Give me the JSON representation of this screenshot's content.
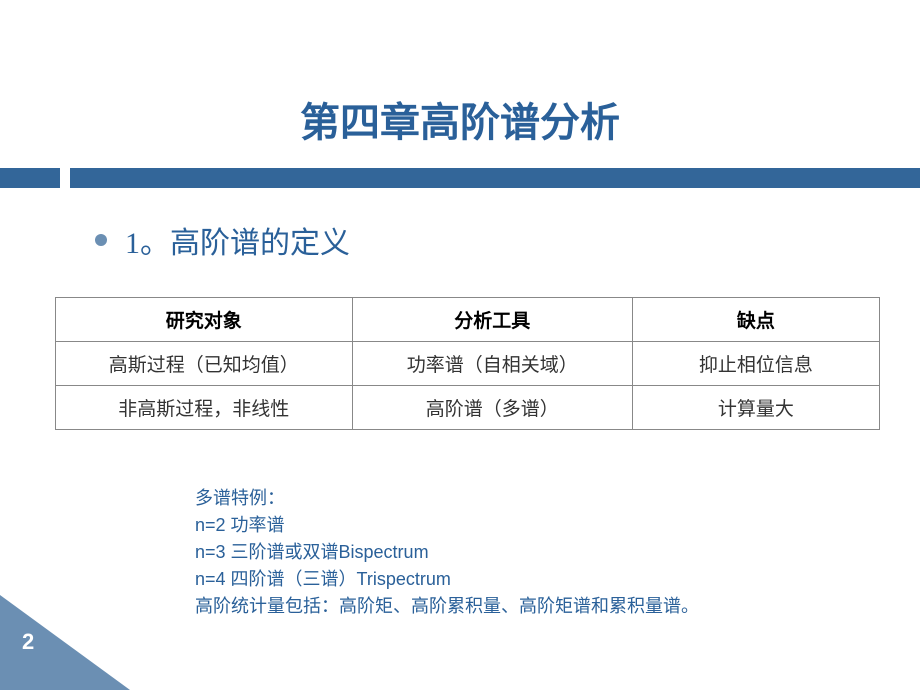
{
  "title": "第四章高阶谱分析",
  "section": {
    "heading": "1。高阶谱的定义"
  },
  "table": {
    "headers": [
      "研究对象",
      "分析工具",
      "缺点"
    ],
    "rows": [
      [
        "高斯过程（已知均值）",
        "功率谱（自相关域）",
        "抑止相位信息"
      ],
      [
        "非高斯过程，非线性",
        "高阶谱（多谱）",
        "计算量大"
      ]
    ]
  },
  "notes": {
    "line1": "多谱特例：",
    "line2": "n=2 功率谱",
    "line3": "n=3 三阶谱或双谱Bispectrum",
    "line4": "n=4 四阶谱（三谱）Trispectrum",
    "line5": "高阶统计量包括：高阶矩、高阶累积量、高阶矩谱和累积量谱。"
  },
  "pageNumber": "2",
  "colors": {
    "title": "#2a6099",
    "bar": "#336699",
    "bullet": "#6b8fb3",
    "corner": "#6b8fb3",
    "text": "#333333"
  }
}
